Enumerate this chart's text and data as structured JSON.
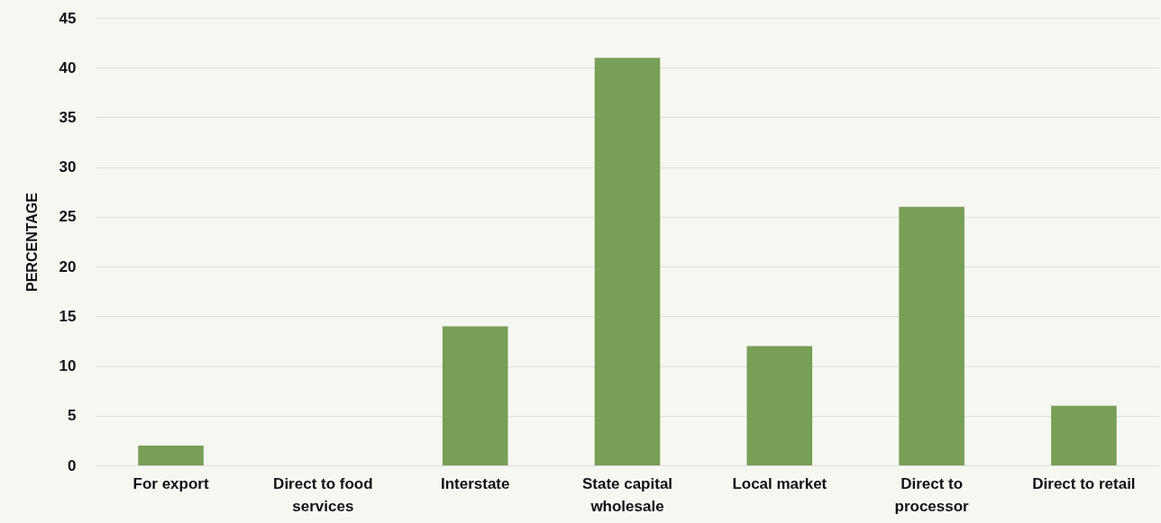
{
  "chart_data": {
    "type": "bar",
    "ylabel": "PERCENTAGE",
    "categories": [
      "For export",
      "Direct to food services",
      "Interstate",
      "State capital wholesale",
      "Local market",
      "Direct to processor",
      "Direct to retail"
    ],
    "values": [
      2,
      0,
      14,
      41,
      12,
      26,
      6
    ],
    "color": "#779f55",
    "ylim": [
      0,
      45
    ],
    "yticks": [
      0,
      5,
      10,
      15,
      20,
      25,
      30,
      35,
      40,
      45
    ],
    "grid": "y"
  }
}
